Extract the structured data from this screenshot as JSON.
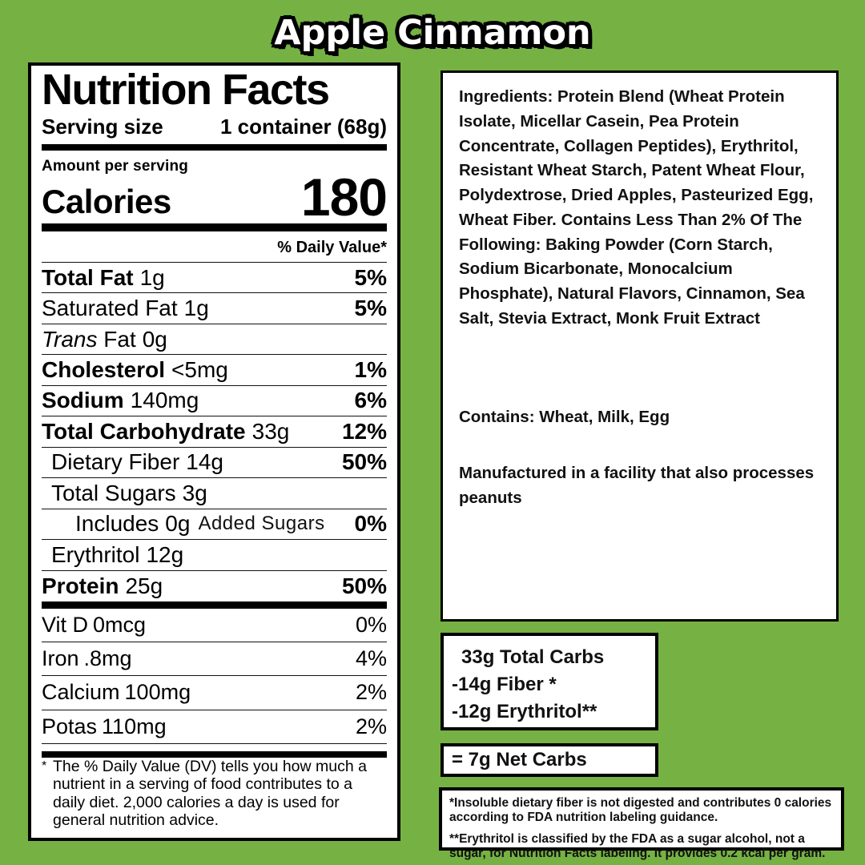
{
  "page": {
    "title": "Apple Cinnamon",
    "colors": {
      "background": "#75b243",
      "panel": "#ffffff",
      "text": "#000000"
    }
  },
  "label": {
    "title": "Nutrition Facts",
    "serving_size_label": "Serving size",
    "serving_size_value": "1 container (68g)",
    "amount_per_serving": "Amount per serving",
    "calories_label": "Calories",
    "calories_value": "180",
    "daily_value_header": "% Daily Value*",
    "rows": [
      {
        "label": "Total Fat",
        "value": "1g",
        "pct": "5%"
      },
      {
        "label": "Saturated Fat",
        "value": "1g",
        "pct": "5%"
      },
      {
        "label_italic": "Trans",
        "label": " Fat",
        "value": "0g",
        "pct": ""
      },
      {
        "label": "Cholesterol",
        "value": "<5mg",
        "pct": "1%"
      },
      {
        "label": "Sodium",
        "value": "140mg",
        "pct": "6%"
      },
      {
        "label": "Total Carbohydrate",
        "value": "33g",
        "pct": "12%"
      },
      {
        "label": "Dietary Fiber",
        "value": "14g",
        "pct": "50%"
      },
      {
        "label": "Total Sugars",
        "value": "3g",
        "pct": ""
      },
      {
        "label": "Includes",
        "value": "0g",
        "suffix": "Added Sugars",
        "pct": "0%"
      },
      {
        "label": "Erythritol",
        "value": "12g",
        "pct": ""
      },
      {
        "label": "Protein",
        "value": "25g",
        "pct": "50%"
      },
      {
        "label": "Vit D",
        "value": "0mcg",
        "pct": "0%"
      },
      {
        "label": "Iron",
        "value": ".8mg",
        "pct": "4%"
      },
      {
        "label": "Calcium",
        "value": "100mg",
        "pct": "2%"
      },
      {
        "label": "Potas",
        "value": "110mg",
        "pct": "2%"
      }
    ],
    "footnote_asterisk": "*",
    "footnote": "The % Daily Value (DV) tells you how much a nutrient in a serving of food contributes to a daily diet. 2,000 calories a day is used for general nutrition advice."
  },
  "ingredients": {
    "text": "Ingredients: Protein Blend (Wheat Protein Isolate, Micellar Casein, Pea Protein Concentrate, Collagen Peptides), Erythritol, Resistant Wheat Starch, Patent Wheat Flour, Polydextrose, Dried Apples, Pasteurized Egg, Wheat Fiber. Contains Less Than 2% Of The Following: Baking Powder (Corn Starch, Sodium Bicarbonate, Monocalcium Phosphate), Natural Flavors, Cinnamon, Sea Salt, Stevia Extract, Monk Fruit Extract",
    "contains": "Contains: Wheat, Milk, Egg",
    "facility": "Manufactured in a facility that also processes peanuts"
  },
  "carb_math": {
    "lines": [
      "33g Total Carbs",
      "-14g Fiber *",
      "-12g Erythritol**"
    ]
  },
  "net_carbs": {
    "text": "= 7g Net Carbs"
  },
  "footnotes": {
    "fiber_note": "*Insoluble dietary fiber is not digested and contributes 0 calories according to FDA nutrition labeling guidance.",
    "erythritol_note": "**Erythritol is classified by the FDA as a sugar alcohol, not a sugar, for Nutrition Facts labeling. It provides 0.2 kcal per gram."
  }
}
